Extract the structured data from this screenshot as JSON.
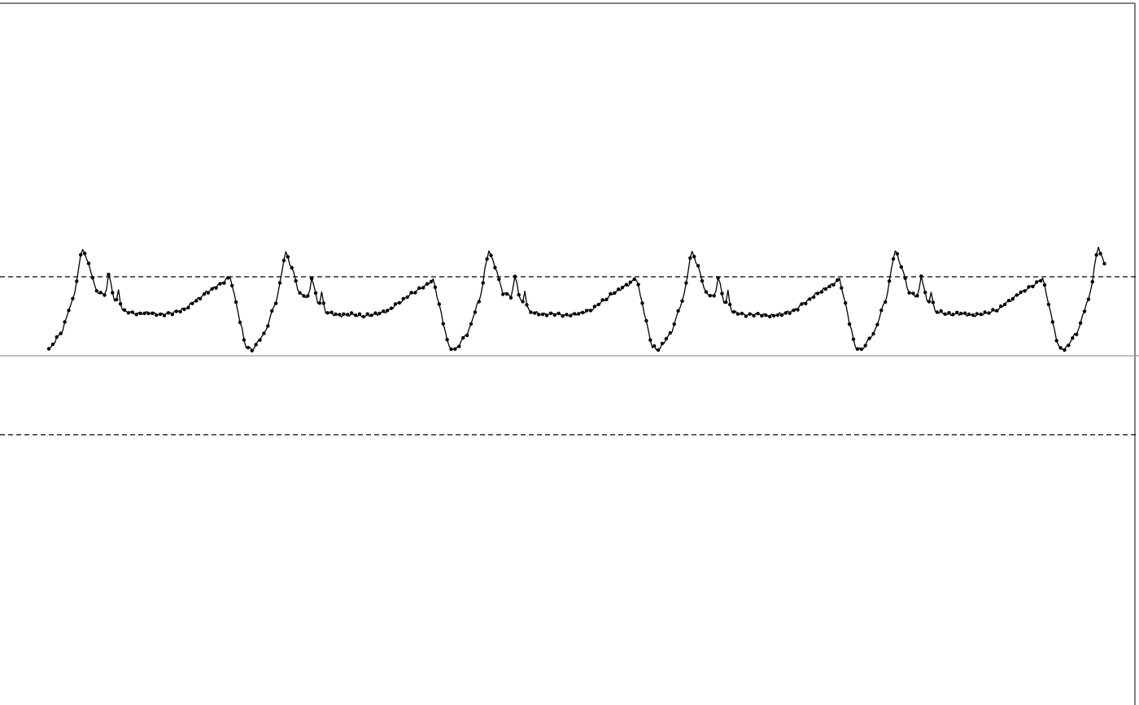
{
  "chart_data": {
    "type": "line",
    "xlim": [
      0,
      560
    ],
    "ylim": [
      -2,
      2
    ],
    "grid": false,
    "reference_lines": [
      {
        "y": 0,
        "style": "solid",
        "color": "#999999"
      },
      {
        "y": 0.9,
        "style": "dashed",
        "color": "#000000"
      },
      {
        "y": -0.9,
        "style": "dashed",
        "color": "#000000"
      }
    ],
    "cycle_starts": [
      0,
      102,
      204,
      306,
      408,
      510
    ],
    "cycle_amplitude_scales": [
      1.02,
      0.98,
      1.0,
      0.99,
      1.0,
      1.03
    ],
    "cycle_shape": {
      "length": 102,
      "points": [
        [
          0,
          0.07
        ],
        [
          6,
          0.25
        ],
        [
          12,
          0.62
        ],
        [
          17,
          1.2
        ],
        [
          20,
          1.02
        ],
        [
          24,
          0.72
        ],
        [
          28,
          0.68
        ],
        [
          31,
          0.78
        ],
        [
          34,
          0.55
        ],
        [
          38,
          0.5
        ],
        [
          44,
          0.47
        ],
        [
          50,
          0.48
        ],
        [
          56,
          0.46
        ],
        [
          62,
          0.48
        ],
        [
          68,
          0.52
        ],
        [
          74,
          0.62
        ],
        [
          80,
          0.72
        ],
        [
          86,
          0.8
        ],
        [
          91,
          0.88
        ],
        [
          94,
          0.6
        ],
        [
          96,
          0.38
        ],
        [
          99,
          0.1
        ],
        [
          102,
          0.07
        ]
      ],
      "secondary_peaks": [
        [
          30,
          0.15
        ],
        [
          35,
          0.2
        ]
      ]
    },
    "series": [
      {
        "color": "#000000",
        "marker": "circle"
      }
    ]
  }
}
